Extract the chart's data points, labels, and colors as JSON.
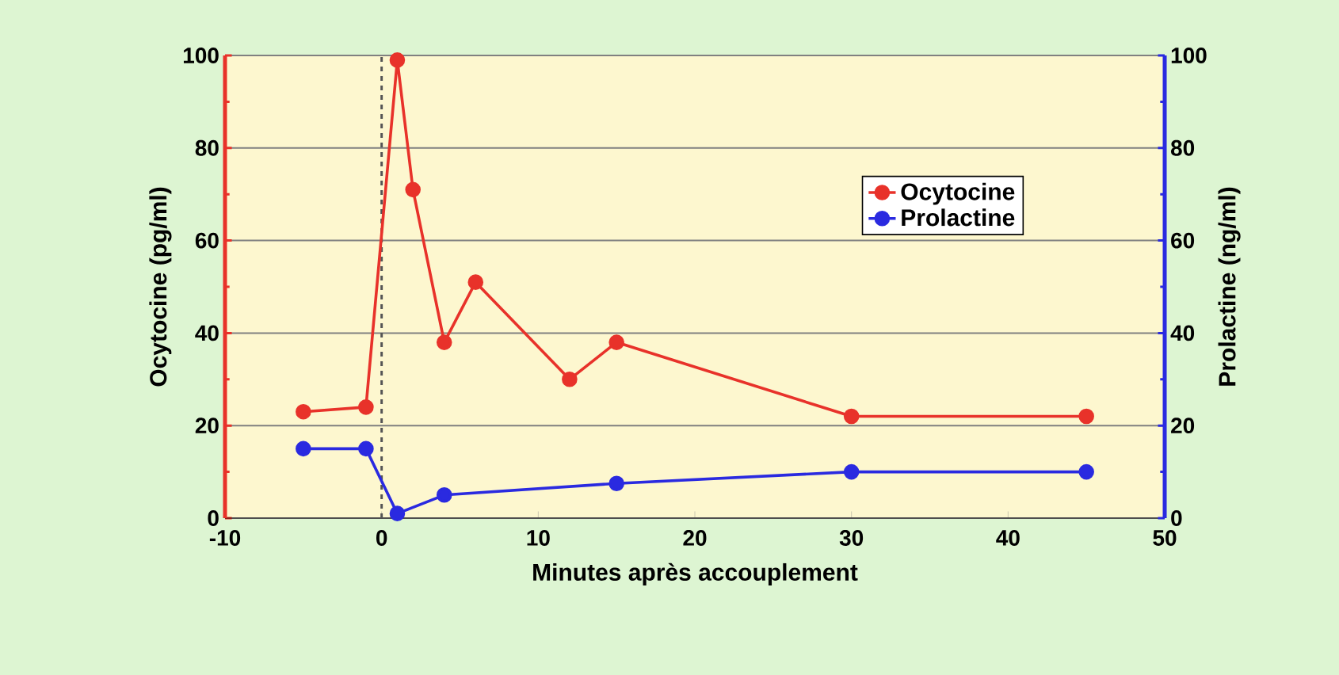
{
  "chart_data": {
    "type": "line",
    "xlabel": "Minutes après accouplement",
    "ylabel": "Ocytocine (pg/ml)",
    "y2label": "Prolactine (ng/ml)",
    "xlim": [
      -10,
      50
    ],
    "xticks": [
      -10,
      0,
      10,
      20,
      30,
      40,
      50
    ],
    "ylim": [
      0,
      100
    ],
    "yticks": [
      0,
      20,
      40,
      60,
      80,
      100
    ],
    "y2lim": [
      0,
      100
    ],
    "y2ticks": [
      0,
      20,
      40,
      60,
      80,
      100
    ],
    "grid": "y",
    "legend": "top right",
    "marker": "circle",
    "line_style": "solid",
    "ref_lines": [
      {
        "axis": "x",
        "value": 0,
        "color": "#555555",
        "line_style": "dashed"
      }
    ],
    "series": [
      {
        "name": "Ocytocine",
        "color": "#e8322a",
        "x": [
          -5,
          -1,
          1,
          2,
          4,
          6,
          12,
          15,
          30,
          45
        ],
        "values": [
          23,
          24,
          99,
          71,
          38,
          51,
          30,
          38,
          22,
          22
        ]
      },
      {
        "name": "Prolactine",
        "color": "#2a2ae0",
        "axis": "y2",
        "x": [
          -5,
          -1,
          1,
          4,
          15,
          30,
          45
        ],
        "values": [
          15,
          15,
          1,
          5,
          7.5,
          10,
          10
        ]
      }
    ]
  }
}
